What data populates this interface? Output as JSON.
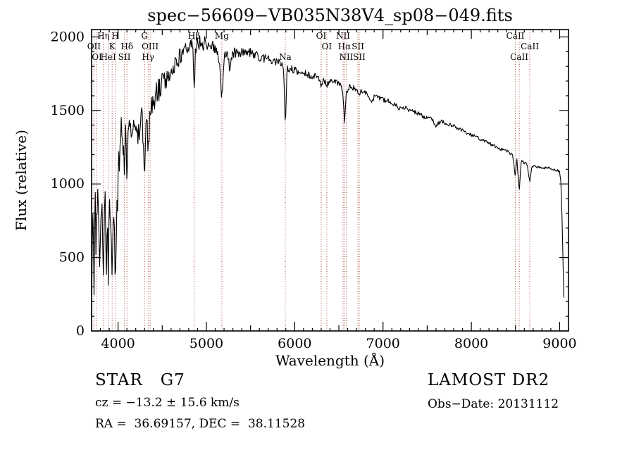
{
  "footer": {
    "class_label": "STAR   G7",
    "survey": "LAMOST DR2",
    "cz": "cz = −13.2 ± 15.6 km/s",
    "obs_date": "Obs−Date: 20131112",
    "radec": "RA =  36.69157, DEC =  38.11528"
  },
  "chart_data": {
    "type": "line",
    "title": "spec−56609−VB035N38V4_sp08−049.fits",
    "xlabel": "Wavelength (Å)",
    "ylabel": "Flux (relative)",
    "xlim": [
      3700,
      9100
    ],
    "ylim": [
      0,
      2050
    ],
    "xticks": [
      4000,
      5000,
      6000,
      7000,
      8000,
      9000
    ],
    "yticks": [
      0,
      500,
      1000,
      1500,
      2000
    ],
    "x_minor_step": 100,
    "y_minor_step": 100,
    "sample_step": 7,
    "grid": false,
    "line_color": "#000000",
    "marker_color": "#a84a40",
    "spectral_lines": [
      {
        "label": "OII",
        "wavelength": 3727,
        "row": 2
      },
      {
        "label": "OI",
        "wavelength": 3760,
        "row": 3
      },
      {
        "label": "Hη",
        "wavelength": 3835,
        "row": 1
      },
      {
        "label": "HeI",
        "wavelength": 3889,
        "row": 3
      },
      {
        "label": "K",
        "wavelength": 3933,
        "row": 2
      },
      {
        "label": "H",
        "wavelength": 3968,
        "row": 1
      },
      {
        "label": "SII",
        "wavelength": 4072,
        "row": 3
      },
      {
        "label": "Hδ",
        "wavelength": 4101,
        "row": 2
      },
      {
        "label": "G",
        "wavelength": 4300,
        "row": 1
      },
      {
        "label": "OIII",
        "wavelength": 4363,
        "row": 2
      },
      {
        "label": "Hγ",
        "wavelength": 4340,
        "row": 3
      },
      {
        "label": "Hβ",
        "wavelength": 4861,
        "row": 1
      },
      {
        "label": "Mg",
        "wavelength": 5175,
        "row": 1
      },
      {
        "label": "Na",
        "wavelength": 5893,
        "row": 3
      },
      {
        "label": "OI",
        "wavelength": 6300,
        "row": 1
      },
      {
        "label": "OI",
        "wavelength": 6363,
        "row": 2
      },
      {
        "label": "NII",
        "wavelength": 6548,
        "row": 1
      },
      {
        "label": "Hα",
        "wavelength": 6563,
        "row": 2
      },
      {
        "label": "NII",
        "wavelength": 6583,
        "row": 3
      },
      {
        "label": "SII",
        "wavelength": 6716,
        "row": 2
      },
      {
        "label": "SII",
        "wavelength": 6731,
        "row": 3
      },
      {
        "label": "CaII",
        "wavelength": 8498,
        "row": 1
      },
      {
        "label": "CaII",
        "wavelength": 8662,
        "row": 2
      },
      {
        "label": "CaII",
        "wavelength": 8542,
        "row": 3
      }
    ],
    "noise_profile": [
      [
        3700,
        150
      ],
      [
        3950,
        135
      ],
      [
        4100,
        105
      ],
      [
        4400,
        85
      ],
      [
        4700,
        60
      ],
      [
        5000,
        42
      ],
      [
        5400,
        33
      ],
      [
        5900,
        27
      ],
      [
        6300,
        22
      ],
      [
        6800,
        18
      ],
      [
        7300,
        15
      ],
      [
        7900,
        12
      ],
      [
        8500,
        10
      ],
      [
        9052,
        8
      ]
    ],
    "series": [
      {
        "name": "flux",
        "anchors": [
          [
            3700,
            150
          ],
          [
            3708,
            500
          ],
          [
            3715,
            820
          ],
          [
            3722,
            450
          ],
          [
            3728,
            360
          ],
          [
            3735,
            760
          ],
          [
            3742,
            950
          ],
          [
            3750,
            620
          ],
          [
            3760,
            860
          ],
          [
            3770,
            1000
          ],
          [
            3780,
            700
          ],
          [
            3790,
            520
          ],
          [
            3798,
            460
          ],
          [
            3806,
            800
          ],
          [
            3815,
            950
          ],
          [
            3825,
            720
          ],
          [
            3835,
            460
          ],
          [
            3845,
            800
          ],
          [
            3855,
            900
          ],
          [
            3862,
            620
          ],
          [
            3870,
            440
          ],
          [
            3880,
            700
          ],
          [
            3889,
            390
          ],
          [
            3900,
            760
          ],
          [
            3910,
            900
          ],
          [
            3920,
            700
          ],
          [
            3933,
            310
          ],
          [
            3945,
            760
          ],
          [
            3955,
            850
          ],
          [
            3968,
            360
          ],
          [
            3980,
            700
          ],
          [
            3995,
            900
          ],
          [
            4010,
            1150
          ],
          [
            4025,
            1300
          ],
          [
            4040,
            1380
          ],
          [
            4055,
            1300
          ],
          [
            4072,
            1160
          ],
          [
            4086,
            1350
          ],
          [
            4101,
            990
          ],
          [
            4115,
            1300
          ],
          [
            4130,
            1420
          ],
          [
            4150,
            1380
          ],
          [
            4170,
            1450
          ],
          [
            4190,
            1400
          ],
          [
            4210,
            1430
          ],
          [
            4227,
            1280
          ],
          [
            4245,
            1420
          ],
          [
            4262,
            1460
          ],
          [
            4280,
            1380
          ],
          [
            4300,
            1130
          ],
          [
            4315,
            1350
          ],
          [
            4327,
            1400
          ],
          [
            4340,
            1160
          ],
          [
            4355,
            1450
          ],
          [
            4366,
            1420
          ],
          [
            4380,
            1520
          ],
          [
            4400,
            1560
          ],
          [
            4430,
            1600
          ],
          [
            4460,
            1640
          ],
          [
            4490,
            1670
          ],
          [
            4520,
            1700
          ],
          [
            4550,
            1730
          ],
          [
            4580,
            1760
          ],
          [
            4610,
            1790
          ],
          [
            4640,
            1815
          ],
          [
            4670,
            1840
          ],
          [
            4700,
            1865
          ],
          [
            4730,
            1890
          ],
          [
            4760,
            1910
          ],
          [
            4790,
            1930
          ],
          [
            4820,
            1950
          ],
          [
            4845,
            1935
          ],
          [
            4861,
            1630
          ],
          [
            4880,
            1935
          ],
          [
            4900,
            1950
          ],
          [
            4930,
            1970
          ],
          [
            4957,
            1940
          ],
          [
            4980,
            1960
          ],
          [
            5000,
            1950
          ],
          [
            5030,
            1935
          ],
          [
            5060,
            1945
          ],
          [
            5090,
            1925
          ],
          [
            5120,
            1905
          ],
          [
            5150,
            1810
          ],
          [
            5175,
            1570
          ],
          [
            5200,
            1855
          ],
          [
            5230,
            1905
          ],
          [
            5255,
            1830
          ],
          [
            5270,
            1760
          ],
          [
            5290,
            1870
          ],
          [
            5320,
            1900
          ],
          [
            5350,
            1890
          ],
          [
            5400,
            1900
          ],
          [
            5450,
            1885
          ],
          [
            5500,
            1895
          ],
          [
            5550,
            1875
          ],
          [
            5600,
            1865
          ],
          [
            5650,
            1855
          ],
          [
            5700,
            1845
          ],
          [
            5750,
            1835
          ],
          [
            5800,
            1825
          ],
          [
            5850,
            1815
          ],
          [
            5875,
            1795
          ],
          [
            5893,
            1395
          ],
          [
            5915,
            1790
          ],
          [
            5950,
            1785
          ],
          [
            6000,
            1775
          ],
          [
            6050,
            1765
          ],
          [
            6100,
            1755
          ],
          [
            6150,
            1745
          ],
          [
            6200,
            1735
          ],
          [
            6250,
            1725
          ],
          [
            6280,
            1705
          ],
          [
            6300,
            1665
          ],
          [
            6330,
            1705
          ],
          [
            6363,
            1675
          ],
          [
            6400,
            1705
          ],
          [
            6440,
            1695
          ],
          [
            6480,
            1685
          ],
          [
            6520,
            1675
          ],
          [
            6548,
            1605
          ],
          [
            6563,
            1405
          ],
          [
            6583,
            1625
          ],
          [
            6620,
            1665
          ],
          [
            6660,
            1655
          ],
          [
            6700,
            1645
          ],
          [
            6717,
            1615
          ],
          [
            6731,
            1615
          ],
          [
            6760,
            1635
          ],
          [
            6800,
            1625
          ],
          [
            6840,
            1605
          ],
          [
            6868,
            1545
          ],
          [
            6900,
            1595
          ],
          [
            6950,
            1585
          ],
          [
            7000,
            1575
          ],
          [
            7050,
            1565
          ],
          [
            7100,
            1545
          ],
          [
            7150,
            1535
          ],
          [
            7185,
            1505
          ],
          [
            7220,
            1525
          ],
          [
            7270,
            1515
          ],
          [
            7320,
            1495
          ],
          [
            7370,
            1485
          ],
          [
            7420,
            1475
          ],
          [
            7470,
            1455
          ],
          [
            7520,
            1445
          ],
          [
            7570,
            1435
          ],
          [
            7594,
            1385
          ],
          [
            7620,
            1405
          ],
          [
            7650,
            1425
          ],
          [
            7700,
            1415
          ],
          [
            7750,
            1405
          ],
          [
            7800,
            1395
          ],
          [
            7850,
            1375
          ],
          [
            7900,
            1365
          ],
          [
            7950,
            1345
          ],
          [
            8000,
            1335
          ],
          [
            8050,
            1325
          ],
          [
            8100,
            1305
          ],
          [
            8150,
            1295
          ],
          [
            8200,
            1275
          ],
          [
            8250,
            1265
          ],
          [
            8300,
            1245
          ],
          [
            8350,
            1235
          ],
          [
            8400,
            1225
          ],
          [
            8440,
            1205
          ],
          [
            8470,
            1195
          ],
          [
            8498,
            1045
          ],
          [
            8515,
            1175
          ],
          [
            8542,
            945
          ],
          [
            8565,
            1155
          ],
          [
            8600,
            1145
          ],
          [
            8630,
            1135
          ],
          [
            8662,
            1015
          ],
          [
            8690,
            1125
          ],
          [
            8730,
            1115
          ],
          [
            8770,
            1115
          ],
          [
            8810,
            1105
          ],
          [
            8850,
            1115
          ],
          [
            8890,
            1105
          ],
          [
            8930,
            1095
          ],
          [
            8960,
            1095
          ],
          [
            9000,
            1085
          ],
          [
            9015,
            1005
          ],
          [
            9030,
            705
          ],
          [
            9042,
            355
          ],
          [
            9052,
            130
          ]
        ]
      }
    ]
  }
}
